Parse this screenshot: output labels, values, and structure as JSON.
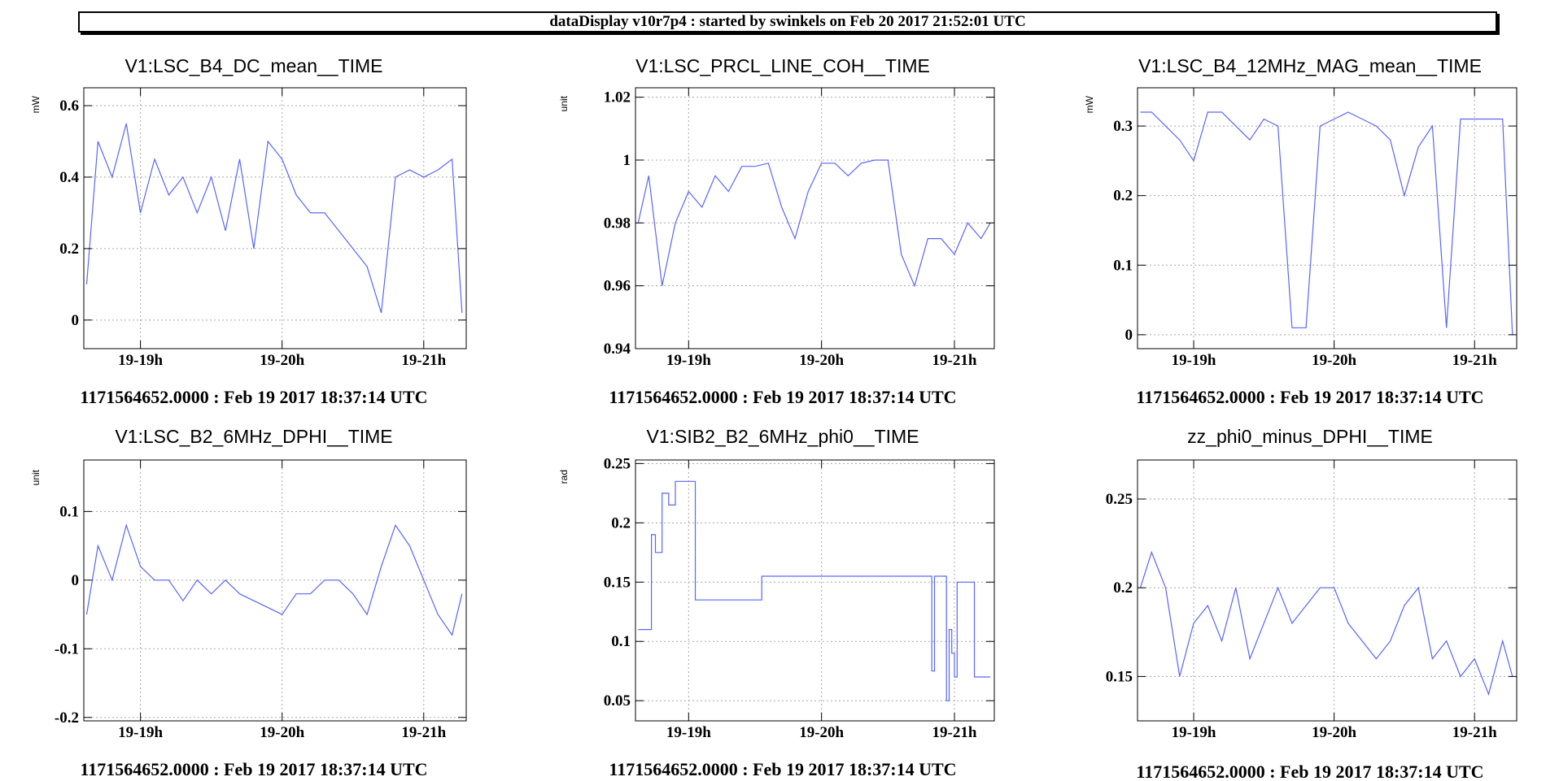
{
  "header": {
    "text": "dataDisplay v10r7p4 : started by swinkels on Feb 20 2017 21:52:01 UTC"
  },
  "colors": {
    "series": "#5a66f5",
    "grid": "#a8a8a8",
    "frame": "#000000"
  },
  "chart_data": [
    {
      "type": "line",
      "title": "V1:LSC_B4_DC_mean__TIME",
      "ylabel": "mW",
      "ylim": [
        -0.08,
        0.65
      ],
      "yticks": [
        0,
        0.2,
        0.4,
        0.6
      ],
      "ytick_labels": [
        "0",
        "0.2",
        "0.4",
        "0.6"
      ],
      "xlim": [
        18.6,
        21.3
      ],
      "xticks": [
        19,
        20,
        21
      ],
      "xtick_labels": [
        "19-19h",
        "19-20h",
        "19-21h"
      ],
      "caption": "1171564652.0000 : Feb 19 2017 18:37:14 UTC",
      "x": [
        18.62,
        18.7,
        18.8,
        18.9,
        19.0,
        19.1,
        19.2,
        19.3,
        19.4,
        19.5,
        19.6,
        19.7,
        19.8,
        19.9,
        20.0,
        20.1,
        20.2,
        20.3,
        20.4,
        20.5,
        20.6,
        20.7,
        20.8,
        20.9,
        21.0,
        21.1,
        21.2,
        21.27
      ],
      "values": [
        0.1,
        0.5,
        0.4,
        0.55,
        0.3,
        0.45,
        0.35,
        0.4,
        0.3,
        0.4,
        0.25,
        0.45,
        0.2,
        0.5,
        0.45,
        0.35,
        0.3,
        0.3,
        0.25,
        0.2,
        0.15,
        0.02,
        0.4,
        0.42,
        0.4,
        0.42,
        0.45,
        0.02
      ]
    },
    {
      "type": "line",
      "title": "V1:LSC_PRCL_LINE_COH__TIME",
      "ylabel": "unit",
      "ylim": [
        0.94,
        1.023
      ],
      "yticks": [
        0.94,
        0.96,
        0.98,
        1,
        1.02
      ],
      "ytick_labels": [
        "0.94",
        "0.96",
        "0.98",
        "1",
        "1.02"
      ],
      "xlim": [
        18.6,
        21.3
      ],
      "xticks": [
        19,
        20,
        21
      ],
      "xtick_labels": [
        "19-19h",
        "19-20h",
        "19-21h"
      ],
      "caption": "1171564652.0000 : Feb 19 2017 18:37:14 UTC",
      "x": [
        18.62,
        18.7,
        18.8,
        18.9,
        19.0,
        19.1,
        19.2,
        19.3,
        19.4,
        19.5,
        19.6,
        19.7,
        19.8,
        19.9,
        20.0,
        20.1,
        20.2,
        20.3,
        20.4,
        20.5,
        20.6,
        20.7,
        20.8,
        20.9,
        21.0,
        21.1,
        21.2,
        21.27
      ],
      "values": [
        0.98,
        0.995,
        0.96,
        0.98,
        0.99,
        0.985,
        0.995,
        0.99,
        0.998,
        0.998,
        0.999,
        0.985,
        0.975,
        0.99,
        0.999,
        0.999,
        0.995,
        0.999,
        1.0,
        1.0,
        0.97,
        0.96,
        0.975,
        0.975,
        0.97,
        0.98,
        0.975,
        0.98
      ]
    },
    {
      "type": "line",
      "title": "V1:LSC_B4_12MHz_MAG_mean__TIME",
      "ylabel": "mW",
      "ylim": [
        -0.02,
        0.355
      ],
      "yticks": [
        0,
        0.1,
        0.2,
        0.3
      ],
      "ytick_labels": [
        "0",
        "0.1",
        "0.2",
        "0.3"
      ],
      "xlim": [
        18.6,
        21.3
      ],
      "xticks": [
        19,
        20,
        21
      ],
      "xtick_labels": [
        "19-19h",
        "19-20h",
        "19-21h"
      ],
      "caption": "1171564652.0000 : Feb 19 2017 18:37:14 UTC",
      "x": [
        18.62,
        18.7,
        18.8,
        18.9,
        19.0,
        19.1,
        19.2,
        19.3,
        19.4,
        19.5,
        19.6,
        19.7,
        19.8,
        19.9,
        20.0,
        20.1,
        20.2,
        20.3,
        20.4,
        20.5,
        20.6,
        20.7,
        20.8,
        20.9,
        21.0,
        21.1,
        21.2,
        21.27
      ],
      "values": [
        0.32,
        0.32,
        0.3,
        0.28,
        0.25,
        0.32,
        0.32,
        0.3,
        0.28,
        0.31,
        0.3,
        0.01,
        0.01,
        0.3,
        0.31,
        0.32,
        0.31,
        0.3,
        0.28,
        0.2,
        0.27,
        0.3,
        0.01,
        0.31,
        0.31,
        0.31,
        0.31,
        0.0
      ]
    },
    {
      "type": "line",
      "title": "V1:LSC_B2_6MHz_DPHI__TIME",
      "ylabel": "unit",
      "ylim": [
        -0.205,
        0.175
      ],
      "yticks": [
        -0.2,
        -0.1,
        0,
        0.1
      ],
      "ytick_labels": [
        "-0.2",
        "-0.1",
        "0",
        "0.1"
      ],
      "xlim": [
        18.6,
        21.3
      ],
      "xticks": [
        19,
        20,
        21
      ],
      "xtick_labels": [
        "19-19h",
        "19-20h",
        "19-21h"
      ],
      "caption": "1171564652.0000 : Feb 19 2017 18:37:14 UTC",
      "x": [
        18.62,
        18.7,
        18.8,
        18.9,
        19.0,
        19.1,
        19.2,
        19.3,
        19.4,
        19.5,
        19.6,
        19.7,
        19.8,
        19.9,
        20.0,
        20.1,
        20.2,
        20.3,
        20.4,
        20.5,
        20.6,
        20.7,
        20.8,
        20.9,
        21.0,
        21.1,
        21.2,
        21.27
      ],
      "values": [
        -0.05,
        0.05,
        0.0,
        0.08,
        0.02,
        0.0,
        0.0,
        -0.03,
        0.0,
        -0.02,
        0.0,
        -0.02,
        -0.03,
        -0.04,
        -0.05,
        -0.02,
        -0.02,
        0.0,
        0.0,
        -0.02,
        -0.05,
        0.02,
        0.08,
        0.05,
        0.0,
        -0.05,
        -0.08,
        -0.02
      ]
    },
    {
      "type": "line",
      "title": "V1:SIB2_B2_6MHz_phi0__TIME",
      "ylabel": "rad",
      "ylim": [
        0.033,
        0.253
      ],
      "yticks": [
        0.05,
        0.1,
        0.15,
        0.2,
        0.25
      ],
      "ytick_labels": [
        "0.05",
        "0.1",
        "0.15",
        "0.2",
        "0.25"
      ],
      "xlim": [
        18.6,
        21.3
      ],
      "xticks": [
        19,
        20,
        21
      ],
      "xtick_labels": [
        "19-19h",
        "19-20h",
        "19-21h"
      ],
      "caption": "1171564652.0000 : Feb 19 2017 18:37:14 UTC",
      "step": true,
      "x": [
        18.62,
        18.72,
        18.75,
        18.8,
        18.85,
        18.9,
        18.95,
        19.05,
        19.55,
        20.83,
        20.85,
        20.94,
        20.96,
        20.98,
        21.0,
        21.02,
        21.06,
        21.15,
        21.27
      ],
      "values": [
        0.11,
        0.19,
        0.175,
        0.225,
        0.215,
        0.235,
        0.235,
        0.135,
        0.155,
        0.075,
        0.155,
        0.05,
        0.11,
        0.09,
        0.07,
        0.15,
        0.15,
        0.07,
        0.07
      ]
    },
    {
      "type": "line",
      "title": "zz_phi0_minus_DPHI__TIME",
      "ylabel": "",
      "ylim": [
        0.125,
        0.272
      ],
      "yticks": [
        0.15,
        0.2,
        0.25
      ],
      "ytick_labels": [
        "0.15",
        "0.2",
        "0.25"
      ],
      "xlim": [
        18.6,
        21.3
      ],
      "xticks": [
        19,
        20,
        21
      ],
      "xtick_labels": [
        "19-19h",
        "19-20h",
        "19-21h"
      ],
      "caption": "1171564652.0000 : Feb 19 2017 18:37:14 UTC",
      "x": [
        18.62,
        18.7,
        18.8,
        18.9,
        19.0,
        19.1,
        19.2,
        19.3,
        19.4,
        19.5,
        19.6,
        19.7,
        19.8,
        19.9,
        20.0,
        20.1,
        20.2,
        20.3,
        20.4,
        20.5,
        20.6,
        20.7,
        20.8,
        20.9,
        21.0,
        21.1,
        21.2,
        21.27
      ],
      "values": [
        0.2,
        0.22,
        0.2,
        0.15,
        0.18,
        0.19,
        0.17,
        0.2,
        0.16,
        0.18,
        0.2,
        0.18,
        0.19,
        0.2,
        0.2,
        0.18,
        0.17,
        0.16,
        0.17,
        0.19,
        0.2,
        0.16,
        0.17,
        0.15,
        0.16,
        0.14,
        0.17,
        0.15
      ]
    }
  ]
}
